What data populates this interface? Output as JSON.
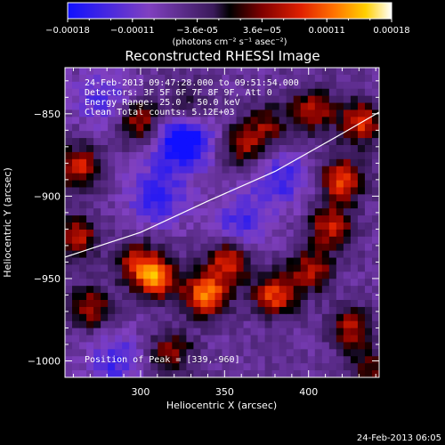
{
  "chart_data": {
    "type": "heatmap",
    "title": "Reconstructed RHESSI Image",
    "xlabel": "Heliocentric X (arcsec)",
    "ylabel": "Heliocentric Y (arcsec)",
    "xlim": [
      255,
      442
    ],
    "ylim": [
      -1010,
      -822
    ],
    "xticks": [
      300,
      350,
      400
    ],
    "yticks": [
      -850,
      -900,
      -950,
      -1000
    ],
    "colorbar": {
      "range": [
        -0.00018,
        0.00018
      ],
      "ticks": [
        "-0.00018",
        "-0.00011",
        "-3.6e-05",
        "3.6e-05",
        "0.00011",
        "0.00018"
      ],
      "label": "(photons cm⁻² s⁻¹ asec⁻²)",
      "colormap": [
        "#1010ff",
        "#8040c0",
        "#5a2a8a",
        "#000000",
        "#800000",
        "#e02000",
        "#ff7000",
        "#ffd000",
        "#ffffff"
      ]
    },
    "annotations": [
      "24-Feb-2013 09:47:28.000 to 09:51:54.000",
      "Detectors: 3F 5F 6F 7F 8F 9F, Att 0",
      "Energy Range: 25.0 - 50.0 keV",
      "Clean     Total counts: 5.12E+03"
    ],
    "peak_label": "Position of Peak = [339,-960]",
    "limb": {
      "x": [
        255,
        300,
        340,
        380,
        420,
        442
      ],
      "y": [
        -937,
        -922,
        -903,
        -885,
        -862,
        -849
      ]
    },
    "bright_sources": [
      {
        "x": 300,
        "y": -855,
        "v": 0.00012
      },
      {
        "x": 327,
        "y": -845,
        "v": 8e-05
      },
      {
        "x": 360,
        "y": -870,
        "v": 0.0001
      },
      {
        "x": 375,
        "y": -858,
        "v": 9e-05
      },
      {
        "x": 402,
        "y": -848,
        "v": 0.00012
      },
      {
        "x": 420,
        "y": -890,
        "v": 0.00016
      },
      {
        "x": 431,
        "y": -855,
        "v": 0.00014
      },
      {
        "x": 263,
        "y": -882,
        "v": 0.00013
      },
      {
        "x": 262,
        "y": -925,
        "v": 0.00012
      },
      {
        "x": 310,
        "y": -950,
        "v": 0.00016
      },
      {
        "x": 298,
        "y": -940,
        "v": 0.00012
      },
      {
        "x": 339,
        "y": -960,
        "v": 0.00018
      },
      {
        "x": 352,
        "y": -940,
        "v": 0.00014
      },
      {
        "x": 380,
        "y": -960,
        "v": 0.00015
      },
      {
        "x": 402,
        "y": -945,
        "v": 0.00012
      },
      {
        "x": 413,
        "y": -918,
        "v": 0.00013
      },
      {
        "x": 270,
        "y": -968,
        "v": 0.00011
      },
      {
        "x": 318,
        "y": -995,
        "v": 0.0001
      },
      {
        "x": 425,
        "y": -980,
        "v": 0.00011
      },
      {
        "x": 438,
        "y": -1005,
        "v": 9e-05
      }
    ],
    "dark_sources": [
      {
        "x": 325,
        "y": -866,
        "v": -0.00018
      },
      {
        "x": 310,
        "y": -900,
        "v": -0.00012
      },
      {
        "x": 360,
        "y": -915,
        "v": -0.0001
      },
      {
        "x": 385,
        "y": -890,
        "v": -0.0001
      },
      {
        "x": 278,
        "y": -840,
        "v": -9e-05
      },
      {
        "x": 285,
        "y": -1000,
        "v": -0.0001
      }
    ]
  },
  "footer": {
    "timestamp": "24-Feb-2013 06:05"
  }
}
